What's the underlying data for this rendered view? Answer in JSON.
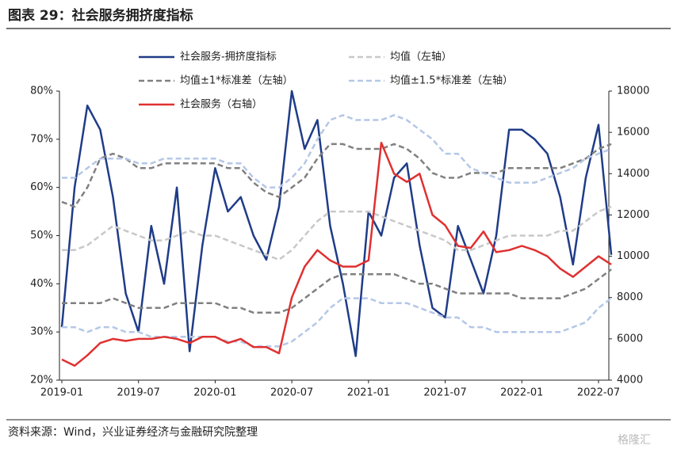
{
  "chart_data": {
    "type": "line",
    "title": "图表 29：社会服务拥挤度指标",
    "source": "资料来源：Wind，兴业证券经济与金融研究院整理",
    "watermark": "格隆汇",
    "x": [
      "2019-01",
      "2019-02",
      "2019-03",
      "2019-04",
      "2019-05",
      "2019-06",
      "2019-07",
      "2019-08",
      "2019-09",
      "2019-10",
      "2019-11",
      "2019-12",
      "2020-01",
      "2020-02",
      "2020-03",
      "2020-04",
      "2020-05",
      "2020-06",
      "2020-07",
      "2020-08",
      "2020-09",
      "2020-10",
      "2020-11",
      "2020-12",
      "2021-01",
      "2021-02",
      "2021-03",
      "2021-04",
      "2021-05",
      "2021-06",
      "2021-07",
      "2021-08",
      "2021-09",
      "2021-10",
      "2021-11",
      "2021-12",
      "2022-01",
      "2022-02",
      "2022-03",
      "2022-04",
      "2022-05",
      "2022-06",
      "2022-07",
      "2022-08"
    ],
    "xticks": [
      "2019-01",
      "2019-07",
      "2020-01",
      "2020-07",
      "2021-01",
      "2021-07",
      "2022-01",
      "2022-07"
    ],
    "ylim": [
      20,
      80
    ],
    "yticks": [
      {
        "value": 20,
        "label": "20%"
      },
      {
        "value": 30,
        "label": "30%"
      },
      {
        "value": 40,
        "label": "40%"
      },
      {
        "value": 50,
        "label": "50%"
      },
      {
        "value": 60,
        "label": "60%"
      },
      {
        "value": 70,
        "label": "70%"
      },
      {
        "value": 80,
        "label": "80%"
      }
    ],
    "y2lim": [
      4000,
      18000
    ],
    "y2ticks": [
      4000,
      6000,
      8000,
      10000,
      12000,
      14000,
      16000,
      18000
    ],
    "series": [
      {
        "name": "社会服务-拥挤度指标",
        "color": "#1f3c88",
        "dash": false,
        "axis": "y",
        "values": [
          31,
          60,
          77,
          72,
          58,
          38,
          30,
          52,
          40,
          60,
          26,
          48,
          64,
          55,
          58,
          50,
          45,
          56,
          80,
          68,
          74,
          52,
          40,
          25,
          55,
          50,
          62,
          65,
          48,
          35,
          33,
          52,
          45,
          38,
          50,
          72,
          72,
          70,
          67,
          58,
          44,
          62,
          73,
          46
        ]
      },
      {
        "name": "均值（左轴）",
        "color": "#c8c8c8",
        "dash": true,
        "axis": "y",
        "values": [
          47,
          47,
          48,
          50,
          52,
          51,
          50,
          49,
          49,
          50,
          51,
          50,
          50,
          49,
          48,
          47,
          46,
          45,
          47,
          50,
          53,
          55,
          55,
          55,
          55,
          54,
          53,
          52,
          51,
          50,
          49,
          47,
          47,
          48,
          49,
          50,
          50,
          50,
          50,
          51,
          51,
          53,
          55,
          56
        ]
      },
      {
        "name": "均值±1*标准差（左轴）",
        "color": "#808080",
        "dash": true,
        "axis": "y",
        "values": [
          57,
          56,
          60,
          66,
          67,
          66,
          64,
          64,
          65,
          65,
          65,
          65,
          65,
          64,
          64,
          61,
          59,
          58,
          60,
          62,
          66,
          69,
          69,
          68,
          68,
          68,
          69,
          68,
          66,
          63,
          62,
          62,
          63,
          63,
          63,
          64,
          64,
          64,
          64,
          64,
          65,
          66,
          68,
          69
        ]
      },
      {
        "name": null,
        "color": "#808080",
        "dash": true,
        "axis": "y",
        "values": [
          36,
          36,
          36,
          36,
          37,
          36,
          35,
          35,
          35,
          36,
          36,
          36,
          36,
          35,
          35,
          34,
          34,
          34,
          35,
          37,
          39,
          41,
          42,
          42,
          42,
          42,
          42,
          41,
          40,
          40,
          39,
          38,
          38,
          38,
          38,
          38,
          37,
          37,
          37,
          37,
          38,
          39,
          41,
          43
        ]
      },
      {
        "name": "均值±1.5*标准差（左轴）",
        "color": "#b4c7e7",
        "dash": true,
        "axis": "y",
        "values": [
          62,
          62,
          64,
          66,
          66,
          66,
          65,
          65,
          66,
          66,
          66,
          66,
          66,
          65,
          65,
          62,
          60,
          60,
          62,
          65,
          70,
          74,
          75,
          74,
          74,
          74,
          75,
          74,
          72,
          70,
          67,
          67,
          64,
          63,
          62,
          61,
          61,
          61,
          62,
          63,
          64,
          66,
          67,
          68
        ]
      },
      {
        "name": null,
        "color": "#b4c7e7",
        "dash": true,
        "axis": "y",
        "values": [
          31,
          31,
          30,
          31,
          31,
          30,
          30,
          29,
          29,
          29,
          29,
          29,
          29,
          28,
          28,
          27,
          27,
          27,
          28,
          30,
          32,
          35,
          37,
          37,
          37,
          36,
          36,
          36,
          35,
          34,
          33,
          33,
          31,
          31,
          30,
          30,
          30,
          30,
          30,
          30,
          31,
          32,
          35,
          37
        ]
      },
      {
        "name": "社会服务（右轴）",
        "color": "#e03030",
        "dash": false,
        "axis": "y2",
        "values": [
          5000,
          4700,
          5200,
          5800,
          6000,
          5900,
          6000,
          6000,
          6100,
          6000,
          5800,
          6100,
          6100,
          5800,
          6000,
          5600,
          5600,
          5300,
          8000,
          9500,
          10300,
          9800,
          9500,
          9500,
          9800,
          15500,
          14000,
          13600,
          14000,
          12000,
          11500,
          10500,
          10400,
          11200,
          10200,
          10300,
          10500,
          10300,
          10000,
          9400,
          9000,
          9500,
          10000,
          9600
        ]
      }
    ]
  }
}
